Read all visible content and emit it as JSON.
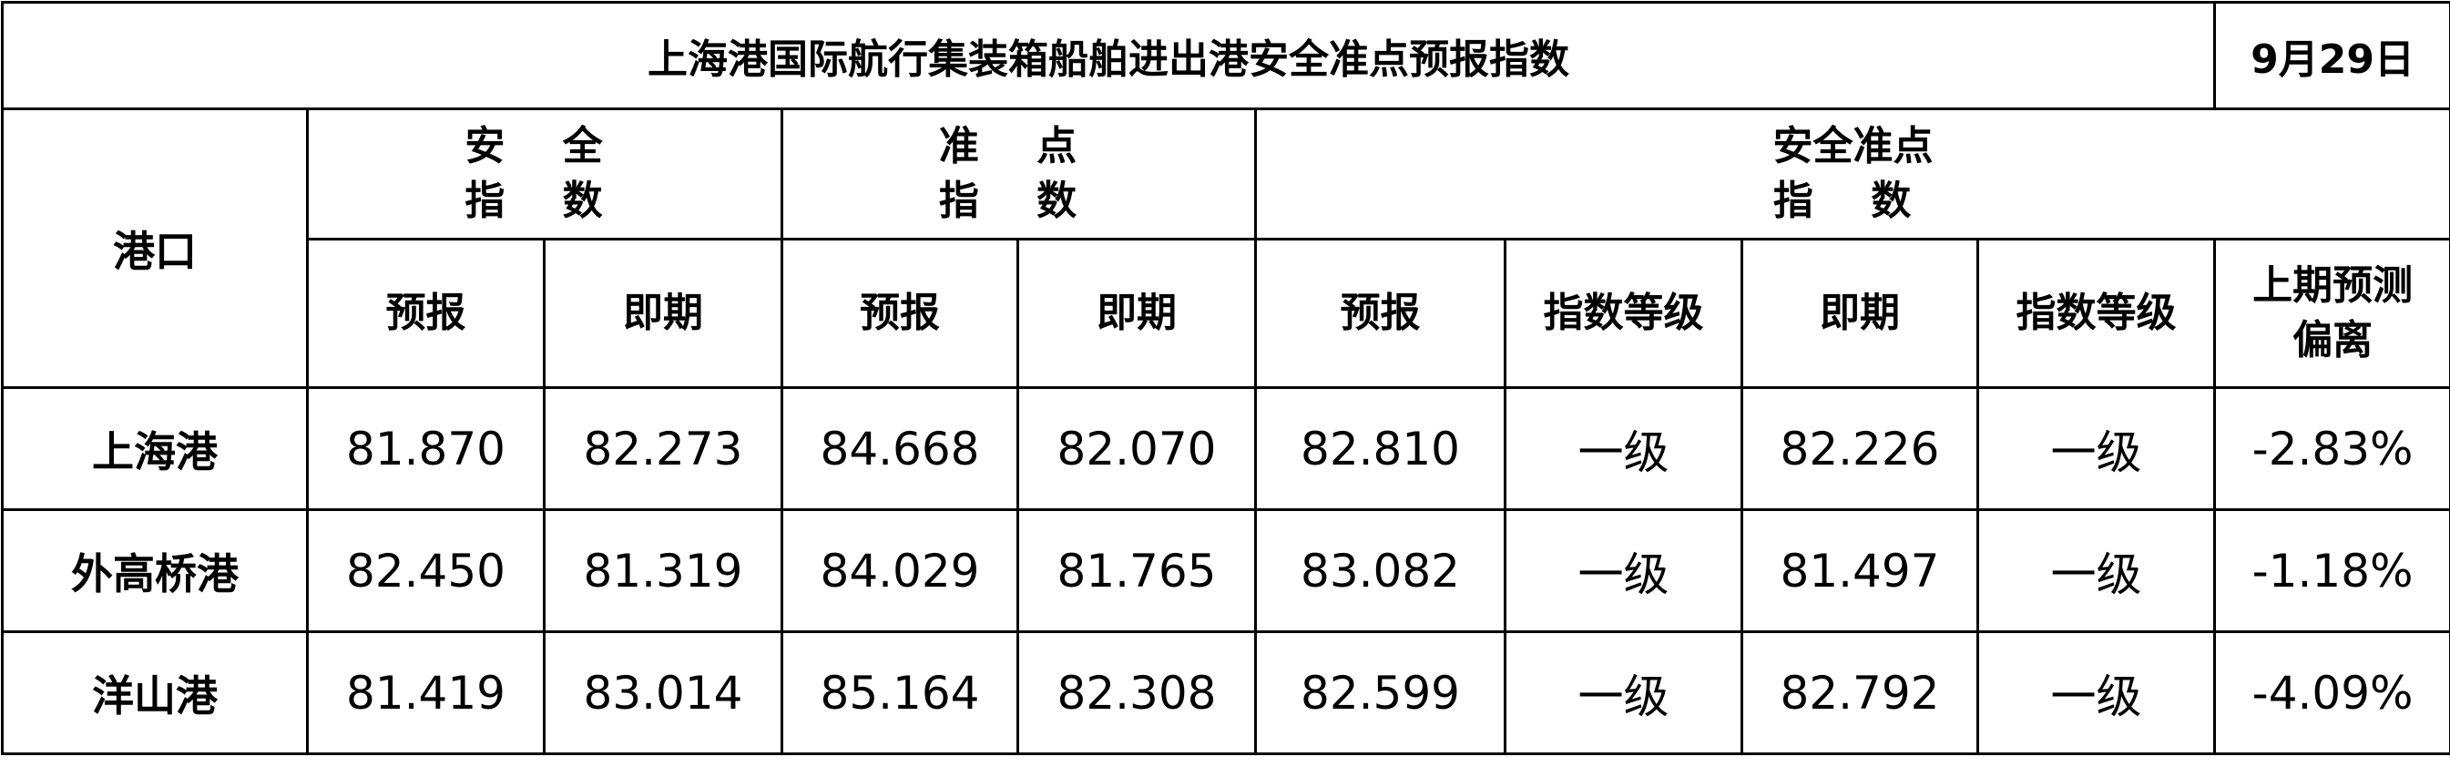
{
  "title": "上海港国际航行集装箱船舶进出港安全准点预报指数",
  "date": "9月29日",
  "headers": {
    "port": "港口",
    "safety": [
      "安 全",
      "指 数"
    ],
    "punctuality": [
      "准 点",
      "指 数"
    ],
    "combined": [
      "安全准点",
      "指 数"
    ],
    "forecast": "预报",
    "current": "即期",
    "grade": "指数等级",
    "deviation": [
      "上期预测",
      "偏离"
    ]
  },
  "rows": [
    {
      "port": "上海港",
      "safety_forecast": "81.870",
      "safety_current": "82.273",
      "punct_forecast": "84.668",
      "punct_current": "82.070",
      "comb_forecast": "82.810",
      "comb_forecast_grade": "一级",
      "comb_current": "82.226",
      "comb_current_grade": "一级",
      "deviation": "-2.83%"
    },
    {
      "port": "外高桥港",
      "safety_forecast": "82.450",
      "safety_current": "81.319",
      "punct_forecast": "84.029",
      "punct_current": "81.765",
      "comb_forecast": "83.082",
      "comb_forecast_grade": "一级",
      "comb_current": "81.497",
      "comb_current_grade": "一级",
      "deviation": "-1.18%"
    },
    {
      "port": "洋山港",
      "safety_forecast": "81.419",
      "safety_current": "83.014",
      "punct_forecast": "85.164",
      "punct_current": "82.308",
      "comb_forecast": "82.599",
      "comb_forecast_grade": "一级",
      "comb_current": "82.792",
      "comb_current_grade": "一级",
      "deviation": "-4.09%"
    }
  ]
}
